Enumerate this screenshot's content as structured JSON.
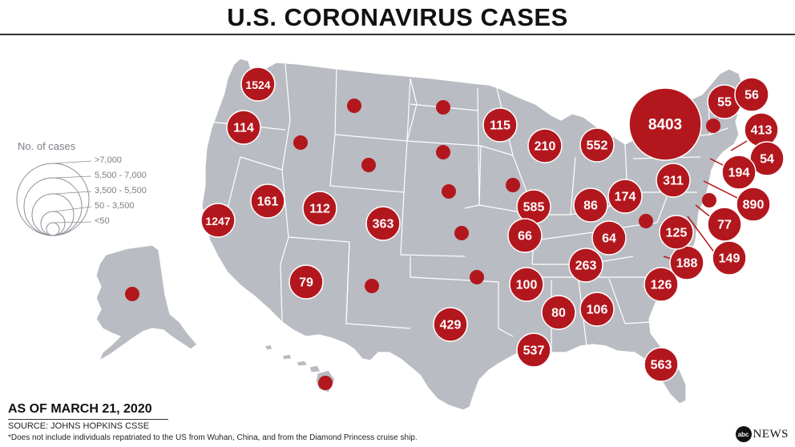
{
  "title": "U.S. CORONAVIRUS CASES",
  "legend": {
    "title": "No. of cases",
    "labels": [
      ">7,000",
      "5,500 - 7,000",
      "3,500 - 5,500",
      "50 - 3,500",
      "<50"
    ]
  },
  "as_of": "AS OF MARCH 21, 2020",
  "source": "SOURCE: JOHNS HOPKINS CSSE",
  "footnote": "*Does not include individuals repatriated to the US from Wuhan, China, and from the Diamond Princess cruise ship.",
  "brand": {
    "logo": "abc",
    "name": "NEWS"
  },
  "colors": {
    "bubble": "#b3171e",
    "land": "#b9bcc2",
    "border": "#ffffff"
  },
  "chart_data": {
    "type": "bubble-map",
    "title": "U.S. CORONAVIRUS CASES",
    "size_bins": [
      ">7,000",
      "5,500 - 7,000",
      "3,500 - 5,500",
      "50 - 3,500",
      "<50"
    ],
    "states": [
      {
        "state": "WA",
        "label": "1524",
        "cases": 1524
      },
      {
        "state": "OR",
        "label": "114",
        "cases": 114
      },
      {
        "state": "CA",
        "label": "1247",
        "cases": 1247
      },
      {
        "state": "NV",
        "label": "161",
        "cases": 161
      },
      {
        "state": "UT",
        "label": "112",
        "cases": 112
      },
      {
        "state": "AZ",
        "label": "79",
        "cases": 79
      },
      {
        "state": "CO",
        "label": "363",
        "cases": 363
      },
      {
        "state": "TX",
        "label": "429",
        "cases": 429
      },
      {
        "state": "MN",
        "label": "115",
        "cases": 115
      },
      {
        "state": "WI",
        "label": "210",
        "cases": 210
      },
      {
        "state": "MI",
        "label": "552",
        "cases": 552
      },
      {
        "state": "IL",
        "label": "585",
        "cases": 585
      },
      {
        "state": "IN",
        "label": "86",
        "cases": 86
      },
      {
        "state": "OH",
        "label": "174",
        "cases": 174
      },
      {
        "state": "MO",
        "label": "66",
        "cases": 66
      },
      {
        "state": "KY",
        "label": "64",
        "cases": 64
      },
      {
        "state": "TN",
        "label": "263",
        "cases": 263
      },
      {
        "state": "AR",
        "label": "100",
        "cases": 100
      },
      {
        "state": "MS",
        "label": "80",
        "cases": 80
      },
      {
        "state": "AL",
        "label": "106",
        "cases": 106
      },
      {
        "state": "LA",
        "label": "537",
        "cases": 537
      },
      {
        "state": "FL",
        "label": "563",
        "cases": 563
      },
      {
        "state": "SC",
        "label": "126",
        "cases": 126
      },
      {
        "state": "NC",
        "label": "188",
        "cases": 188
      },
      {
        "state": "VA",
        "label": "125",
        "cases": 125
      },
      {
        "state": "PA",
        "label": "311",
        "cases": 311
      },
      {
        "state": "NY",
        "label": "8403",
        "cases": 8403
      },
      {
        "state": "VT",
        "label": "55",
        "cases": 55
      },
      {
        "state": "ME",
        "label": "56",
        "cases": 56
      },
      {
        "state": "MA",
        "label": "413",
        "cases": 413
      },
      {
        "state": "RI",
        "label": "54",
        "cases": 54
      },
      {
        "state": "CT",
        "label": "194",
        "cases": 194
      },
      {
        "state": "NJ",
        "label": "890",
        "cases": 890
      },
      {
        "state": "DE",
        "label": "77",
        "cases": 77
      },
      {
        "state": "MD",
        "label": "149",
        "cases": 149
      },
      {
        "state": "ID",
        "label": "",
        "cases": null
      },
      {
        "state": "MT",
        "label": "",
        "cases": null
      },
      {
        "state": "WY",
        "label": "",
        "cases": null
      },
      {
        "state": "ND",
        "label": "",
        "cases": null
      },
      {
        "state": "SD",
        "label": "",
        "cases": null
      },
      {
        "state": "NE",
        "label": "",
        "cases": null
      },
      {
        "state": "KS",
        "label": "",
        "cases": null
      },
      {
        "state": "NM",
        "label": "",
        "cases": null
      },
      {
        "state": "OK",
        "label": "",
        "cases": null
      },
      {
        "state": "IA",
        "label": "",
        "cases": null
      },
      {
        "state": "WV",
        "label": "",
        "cases": null
      },
      {
        "state": "NH",
        "label": "",
        "cases": null
      },
      {
        "state": "DC",
        "label": "",
        "cases": null
      },
      {
        "state": "AK",
        "label": "",
        "cases": null
      },
      {
        "state": "HI",
        "label": "",
        "cases": null
      }
    ]
  }
}
